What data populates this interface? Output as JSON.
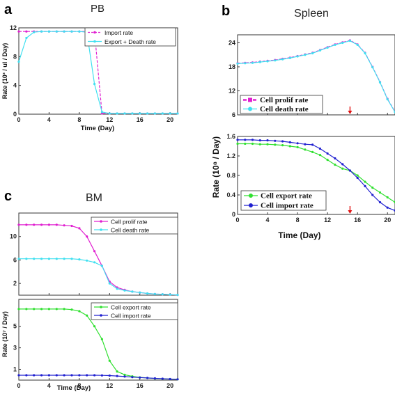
{
  "colors": {
    "magenta": "#e020d0",
    "cyan": "#40e0f0",
    "green": "#30e030",
    "blue": "#2020d0",
    "red_arrow": "#e01010"
  },
  "chart_data": [
    {
      "id": "a",
      "panel_letter": "a",
      "type": "line",
      "title": "PB",
      "xlabel": "Time (Day)",
      "ylabel": "Rate (10³ / ul / Day)",
      "xlim": [
        0,
        21
      ],
      "ylim": [
        0,
        12
      ],
      "xticks": [
        0,
        4,
        8,
        12,
        16,
        20
      ],
      "yticks": [
        0,
        4,
        8,
        12
      ],
      "legend_position": "top-right",
      "series": [
        {
          "name": "Import rate",
          "color": "#e020d0",
          "dashed": true,
          "x": [
            0,
            1,
            2,
            3,
            4,
            5,
            6,
            7,
            8,
            9,
            10,
            11,
            12,
            13,
            14,
            15,
            16,
            17,
            18,
            19,
            20,
            21
          ],
          "y": [
            11.5,
            11.5,
            11.5,
            11.5,
            11.5,
            11.5,
            11.5,
            11.5,
            11.5,
            11.5,
            11.5,
            0.1,
            0.1,
            0.1,
            0.1,
            0.1,
            0.1,
            0.1,
            0.1,
            0.1,
            0.1,
            0.1
          ]
        },
        {
          "name": "Export + Death rate",
          "color": "#40e0f0",
          "dashed": false,
          "x": [
            0,
            1,
            2,
            3,
            4,
            5,
            6,
            7,
            8,
            9,
            10,
            11,
            12,
            13,
            14,
            15,
            16,
            17,
            18,
            19,
            20,
            21
          ],
          "y": [
            7.3,
            10.6,
            11.4,
            11.5,
            11.5,
            11.5,
            11.5,
            11.5,
            11.5,
            11.4,
            4.2,
            0.3,
            0.1,
            0.1,
            0.1,
            0.1,
            0.1,
            0.1,
            0.1,
            0.1,
            0.1,
            0.1
          ]
        }
      ]
    },
    {
      "id": "b_top",
      "panel_letter": "b",
      "type": "line",
      "title": "Spleen",
      "xlim": [
        0,
        21
      ],
      "ylim": [
        6,
        26
      ],
      "yticks": [
        6,
        12,
        18,
        24
      ],
      "legend_position": "bottom-left",
      "arrow_day": 15,
      "series": [
        {
          "name": "Cell prolif rate",
          "color": "#e020d0",
          "dashed": true,
          "x": [
            0,
            1,
            2,
            3,
            4,
            5,
            6,
            7,
            8,
            9,
            10,
            11,
            12,
            13,
            14,
            15,
            16,
            17,
            18,
            19,
            20,
            21
          ],
          "y": [
            18.9,
            19.0,
            19.1,
            19.3,
            19.5,
            19.7,
            20.0,
            20.3,
            20.7,
            21.1,
            21.5,
            22.2,
            22.9,
            23.6,
            24.1,
            24.6,
            23.6,
            21.5,
            18.0,
            14.2,
            10.0,
            6.8
          ]
        },
        {
          "name": "Cell death rate",
          "color": "#40e0f0",
          "dashed": false,
          "x": [
            0,
            1,
            2,
            3,
            4,
            5,
            6,
            7,
            8,
            9,
            10,
            11,
            12,
            13,
            14,
            15,
            16,
            17,
            18,
            19,
            20,
            21
          ],
          "y": [
            18.8,
            18.9,
            19.0,
            19.2,
            19.4,
            19.6,
            19.9,
            20.2,
            20.6,
            21.0,
            21.4,
            22.1,
            22.8,
            23.5,
            24.0,
            24.5,
            23.5,
            21.4,
            17.9,
            14.1,
            9.9,
            6.7
          ]
        }
      ]
    },
    {
      "id": "b_bottom",
      "panel_letter": "",
      "type": "line",
      "xlabel": "Time (Day)",
      "ylabel": "Rate (10⁸ / Day)",
      "xlim": [
        0,
        21
      ],
      "ylim": [
        0,
        1.6
      ],
      "xticks": [
        0,
        4,
        8,
        12,
        16,
        20
      ],
      "yticks": [
        0,
        0.4,
        0.8,
        1.2,
        1.6
      ],
      "legend_position": "bottom-left",
      "arrow_day": 15,
      "series": [
        {
          "name": "Cell export rate",
          "color": "#30e030",
          "dashed": false,
          "x": [
            0,
            1,
            2,
            3,
            4,
            5,
            6,
            7,
            8,
            9,
            10,
            11,
            12,
            13,
            14,
            15,
            16,
            17,
            18,
            19,
            20,
            21
          ],
          "y": [
            1.45,
            1.45,
            1.45,
            1.44,
            1.44,
            1.43,
            1.42,
            1.4,
            1.38,
            1.33,
            1.28,
            1.22,
            1.12,
            1.02,
            0.94,
            0.9,
            0.8,
            0.67,
            0.55,
            0.45,
            0.35,
            0.25
          ]
        },
        {
          "name": "Cell import rate",
          "color": "#2020d0",
          "dashed": false,
          "x": [
            0,
            1,
            2,
            3,
            4,
            5,
            6,
            7,
            8,
            9,
            10,
            11,
            12,
            13,
            14,
            15,
            16,
            17,
            18,
            19,
            20,
            21
          ],
          "y": [
            1.53,
            1.53,
            1.53,
            1.52,
            1.52,
            1.51,
            1.5,
            1.48,
            1.46,
            1.44,
            1.43,
            1.35,
            1.25,
            1.15,
            1.03,
            0.9,
            0.75,
            0.58,
            0.4,
            0.25,
            0.14,
            0.08
          ]
        }
      ]
    },
    {
      "id": "c_top",
      "panel_letter": "c",
      "type": "line",
      "title": "BM",
      "xlim": [
        0,
        21
      ],
      "ylim": [
        0,
        14
      ],
      "yticks": [
        2,
        6,
        10
      ],
      "legend_position": "top-right",
      "series": [
        {
          "name": "Cell prolif rate",
          "color": "#e020d0",
          "dashed": false,
          "x": [
            0,
            1,
            2,
            3,
            4,
            5,
            6,
            7,
            8,
            9,
            10,
            11,
            12,
            13,
            14,
            15,
            16,
            17,
            18,
            19,
            20,
            21
          ],
          "y": [
            12.0,
            12.0,
            12.0,
            12.0,
            12.0,
            12.0,
            11.9,
            11.8,
            11.4,
            10.0,
            7.5,
            5.0,
            2.3,
            1.3,
            0.9,
            0.6,
            0.45,
            0.3,
            0.2,
            0.15,
            0.1,
            0.05
          ]
        },
        {
          "name": "Cell death rate",
          "color": "#40e0f0",
          "dashed": false,
          "x": [
            0,
            1,
            2,
            3,
            4,
            5,
            6,
            7,
            8,
            9,
            10,
            11,
            12,
            13,
            14,
            15,
            16,
            17,
            18,
            19,
            20,
            21
          ],
          "y": [
            6.2,
            6.2,
            6.2,
            6.2,
            6.2,
            6.2,
            6.2,
            6.2,
            6.1,
            5.9,
            5.6,
            5.0,
            2.0,
            1.1,
            0.8,
            0.6,
            0.45,
            0.3,
            0.2,
            0.15,
            0.1,
            0.05
          ]
        }
      ]
    },
    {
      "id": "c_bottom",
      "panel_letter": "",
      "type": "line",
      "xlabel": "Time (Day)",
      "ylabel": "Rate (10⁷ / Day)",
      "xlim": [
        0,
        21
      ],
      "ylim": [
        0,
        7.5
      ],
      "xticks": [
        0,
        4,
        8,
        12,
        16,
        20
      ],
      "yticks": [
        1,
        3,
        5
      ],
      "legend_position": "top-right",
      "series": [
        {
          "name": "Cell export rate",
          "color": "#30e030",
          "dashed": false,
          "x": [
            0,
            1,
            2,
            3,
            4,
            5,
            6,
            7,
            8,
            9,
            10,
            11,
            12,
            13,
            14,
            15,
            16,
            17,
            18,
            19,
            20,
            21
          ],
          "y": [
            6.6,
            6.6,
            6.6,
            6.6,
            6.6,
            6.6,
            6.6,
            6.55,
            6.4,
            6.0,
            5.0,
            3.8,
            1.8,
            0.8,
            0.5,
            0.35,
            0.25,
            0.2,
            0.15,
            0.12,
            0.1,
            0.08
          ]
        },
        {
          "name": "Cell import rate",
          "color": "#2020d0",
          "dashed": false,
          "x": [
            0,
            1,
            2,
            3,
            4,
            5,
            6,
            7,
            8,
            9,
            10,
            11,
            12,
            13,
            14,
            15,
            16,
            17,
            18,
            19,
            20,
            21
          ],
          "y": [
            0.45,
            0.45,
            0.45,
            0.45,
            0.45,
            0.45,
            0.45,
            0.45,
            0.45,
            0.45,
            0.45,
            0.44,
            0.42,
            0.38,
            0.33,
            0.28,
            0.24,
            0.2,
            0.16,
            0.13,
            0.1,
            0.08
          ]
        }
      ]
    }
  ]
}
